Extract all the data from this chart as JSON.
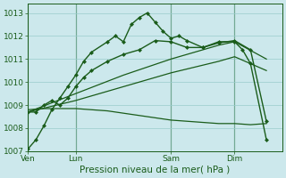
{
  "xlabel": "Pression niveau de la mer( hPa )",
  "bg_color": "#cce8ec",
  "grid_color": "#99cccc",
  "line_color": "#1a5c1a",
  "ylim": [
    1007,
    1013.4
  ],
  "yticks": [
    1007,
    1008,
    1009,
    1010,
    1011,
    1012,
    1013
  ],
  "xtick_labels": [
    "Ven",
    "Lun",
    "Sam",
    "Dim"
  ],
  "xtick_positions": [
    0,
    3,
    9,
    13
  ],
  "xlim": [
    0,
    16
  ],
  "series": {
    "line1_jagged_high": {
      "x": [
        0,
        0.5,
        1,
        1.5,
        2,
        2.5,
        3,
        3.5,
        4,
        5,
        5.5,
        6,
        6.5,
        7,
        7.5,
        8,
        8.5,
        9,
        9.5,
        10,
        11,
        12,
        13,
        13.5,
        14,
        15
      ],
      "y": [
        1007.1,
        1007.5,
        1008.1,
        1008.8,
        1009.3,
        1009.8,
        1010.3,
        1010.9,
        1011.3,
        1011.75,
        1012.0,
        1011.75,
        1012.5,
        1012.8,
        1013.0,
        1012.6,
        1012.2,
        1011.9,
        1012.0,
        1011.8,
        1011.5,
        1011.75,
        1011.75,
        1011.4,
        1010.8,
        1007.5
      ],
      "marker": "D",
      "markersize": 2.5,
      "lw": 1.0
    },
    "line2_jagged_mid": {
      "x": [
        0,
        0.5,
        1,
        1.5,
        2,
        2.5,
        3,
        3.5,
        4,
        5,
        6,
        7,
        8,
        9,
        10,
        11,
        12,
        13,
        14,
        15
      ],
      "y": [
        1008.7,
        1008.7,
        1009.0,
        1009.2,
        1009.0,
        1009.3,
        1009.8,
        1010.2,
        1010.5,
        1010.9,
        1011.2,
        1011.4,
        1011.8,
        1011.75,
        1011.5,
        1011.5,
        1011.7,
        1011.8,
        1011.4,
        1008.3
      ],
      "marker": "D",
      "markersize": 2.5,
      "lw": 1.0
    },
    "line3_smooth_high": {
      "x": [
        0,
        3,
        6,
        9,
        12,
        13,
        15
      ],
      "y": [
        1008.7,
        1009.5,
        1010.3,
        1011.0,
        1011.6,
        1011.75,
        1011.0
      ],
      "marker": null,
      "lw": 0.9
    },
    "line4_smooth_mid": {
      "x": [
        0,
        3,
        6,
        9,
        12,
        13,
        15
      ],
      "y": [
        1008.7,
        1009.2,
        1009.8,
        1010.4,
        1010.9,
        1011.1,
        1010.5
      ],
      "marker": null,
      "lw": 0.9
    },
    "line5_flat": {
      "x": [
        0,
        1,
        2,
        3,
        4,
        5,
        6,
        7,
        8,
        9,
        10,
        11,
        12,
        13,
        14,
        15
      ],
      "y": [
        1008.8,
        1008.85,
        1008.85,
        1008.85,
        1008.8,
        1008.75,
        1008.65,
        1008.55,
        1008.45,
        1008.35,
        1008.3,
        1008.25,
        1008.2,
        1008.2,
        1008.15,
        1008.2
      ],
      "marker": null,
      "lw": 0.9
    }
  }
}
